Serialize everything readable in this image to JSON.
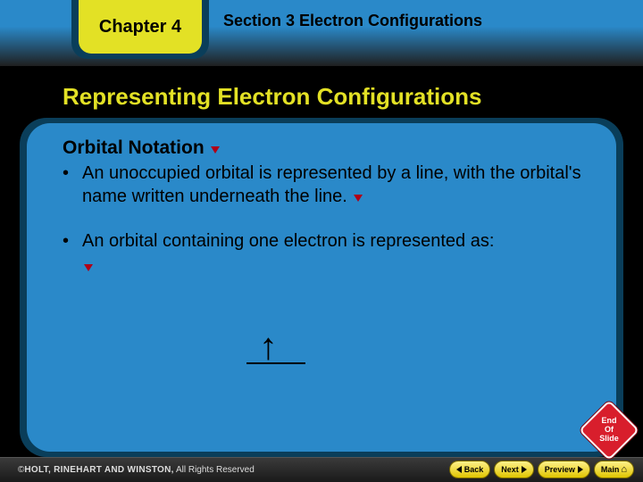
{
  "colors": {
    "accent_yellow": "#e3e125",
    "blue_bg": "#2a89c9",
    "dark_blue": "#0a3e5a",
    "red_marker": "#b00018",
    "stop_red": "#d81e2c",
    "black": "#000000"
  },
  "header": {
    "chapter_label": "Chapter 4",
    "section_label": "Section 3  Electron Configurations"
  },
  "title": "Representing Electron Configurations",
  "body": {
    "subheading": "Orbital Notation",
    "bullet1": "An unoccupied orbital is represented by a line, with the orbital's name written underneath the line.",
    "bullet2": "An orbital containing one electron is represented as:"
  },
  "orbital_symbol": "↑",
  "footer": {
    "copyright_prefix": "©",
    "copyright_brand": "HOLT, RINEHART AND WINSTON,",
    "copyright_suffix": " All Rights Reserved",
    "back_label": "Back",
    "next_label": "Next",
    "preview_label": "Preview",
    "main_label": "Main"
  },
  "endsign": "End Of Slide"
}
